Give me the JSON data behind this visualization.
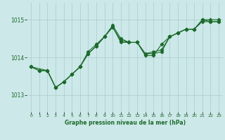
{
  "title": "Graphe pression niveau de la mer (hPa)",
  "xlim": [
    -0.5,
    23.5
  ],
  "ylim": [
    1012.55,
    1015.45
  ],
  "yticks": [
    1013,
    1014,
    1015
  ],
  "xticks": [
    0,
    1,
    2,
    3,
    4,
    5,
    6,
    7,
    8,
    9,
    10,
    11,
    12,
    13,
    14,
    15,
    16,
    17,
    18,
    19,
    20,
    21,
    22,
    23
  ],
  "background_color": "#cce8e8",
  "grid_color": "#aacccc",
  "line_color": "#1a6b2a",
  "lines": [
    {
      "x": [
        0,
        1,
        2,
        3,
        4,
        5,
        6,
        7,
        8,
        9,
        10,
        11,
        12,
        13,
        14,
        15,
        16,
        17,
        18,
        19,
        20,
        21,
        22,
        23
      ],
      "y": [
        1013.75,
        1013.65,
        1013.65,
        1013.2,
        1013.35,
        1013.55,
        1013.75,
        1014.15,
        1014.35,
        1014.55,
        1014.85,
        1014.5,
        1014.4,
        1014.4,
        1014.05,
        1014.05,
        1014.35,
        1014.55,
        1014.65,
        1014.75,
        1014.75,
        1015.0,
        1015.0,
        1015.0
      ]
    },
    {
      "x": [
        0,
        1,
        2,
        3,
        4,
        5,
        6,
        7,
        8,
        9,
        10,
        11,
        12,
        13,
        14,
        15,
        16,
        17,
        18,
        19,
        20,
        21,
        22,
        23
      ],
      "y": [
        1013.75,
        1013.65,
        1013.65,
        1013.2,
        1013.35,
        1013.55,
        1013.75,
        1014.1,
        1014.3,
        1014.55,
        1014.8,
        1014.45,
        1014.4,
        1014.4,
        1014.1,
        1014.1,
        1014.15,
        1014.55,
        1014.65,
        1014.75,
        1014.75,
        1015.0,
        1014.95,
        1014.95
      ]
    },
    {
      "x": [
        0,
        2,
        3,
        4,
        5,
        6,
        7,
        8,
        9,
        10,
        11,
        12,
        13,
        14,
        15,
        16,
        17,
        18,
        19,
        20,
        21,
        22,
        23
      ],
      "y": [
        1013.75,
        1013.65,
        1013.2,
        1013.35,
        1013.55,
        1013.75,
        1014.1,
        1014.3,
        1014.55,
        1014.82,
        1014.4,
        1014.4,
        1014.4,
        1014.1,
        1014.15,
        1014.2,
        1014.55,
        1014.65,
        1014.75,
        1014.75,
        1014.95,
        1014.95,
        1014.95
      ]
    }
  ],
  "figsize": [
    3.2,
    2.0
  ],
  "dpi": 100
}
